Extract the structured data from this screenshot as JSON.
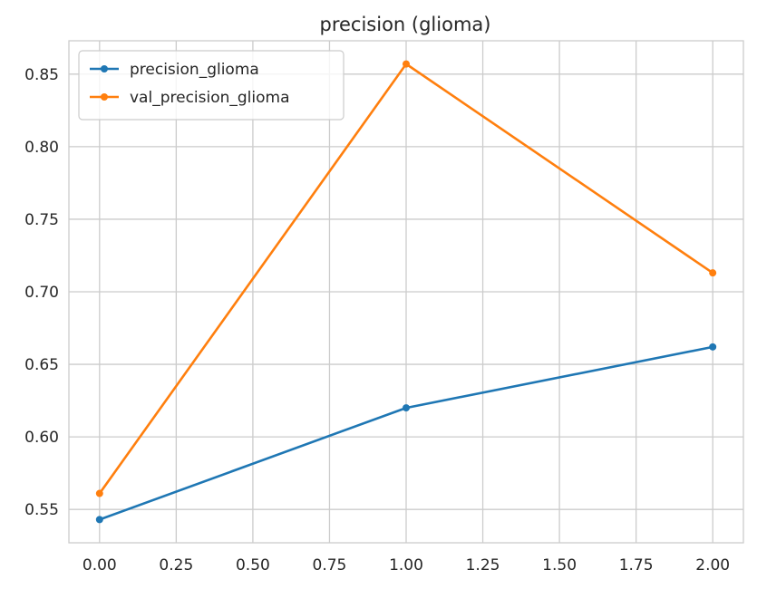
{
  "chart_data": {
    "type": "line",
    "title": "precision (glioma)",
    "xlabel": "",
    "ylabel": "",
    "xlim": [
      -0.1,
      2.1
    ],
    "ylim": [
      0.527,
      0.873
    ],
    "x_ticks": [
      0.0,
      0.25,
      0.5,
      0.75,
      1.0,
      1.25,
      1.5,
      1.75,
      2.0
    ],
    "x_tick_labels": [
      "0.00",
      "0.25",
      "0.50",
      "0.75",
      "1.00",
      "1.25",
      "1.50",
      "1.75",
      "2.00"
    ],
    "y_ticks": [
      0.55,
      0.6,
      0.65,
      0.7,
      0.75,
      0.8,
      0.85
    ],
    "y_tick_labels": [
      "0.55",
      "0.60",
      "0.65",
      "0.70",
      "0.75",
      "0.80",
      "0.85"
    ],
    "grid": true,
    "legend_position": "top-left",
    "x": [
      0,
      1,
      2
    ],
    "series": [
      {
        "name": "precision_glioma",
        "values": [
          0.543,
          0.62,
          0.662
        ],
        "color": "#1f77b4"
      },
      {
        "name": "val_precision_glioma",
        "values": [
          0.561,
          0.857,
          0.713
        ],
        "color": "#ff7f0e"
      }
    ]
  }
}
